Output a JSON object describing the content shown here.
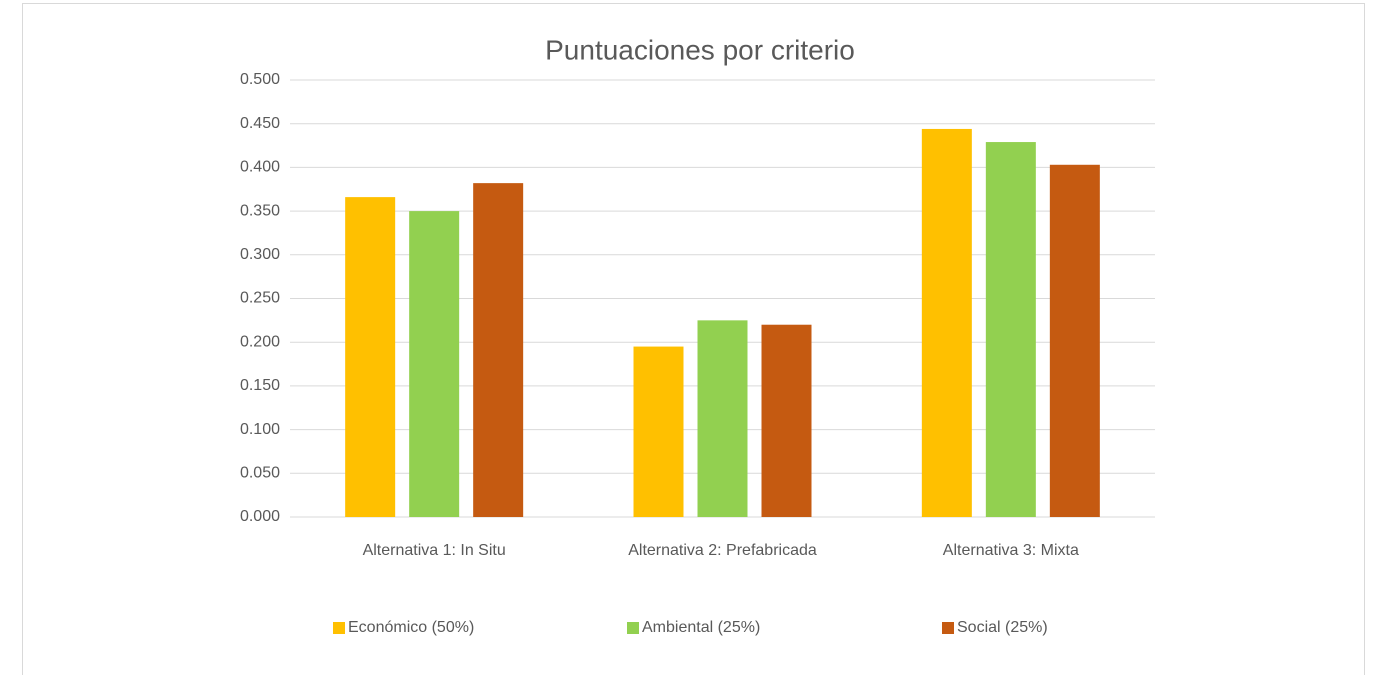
{
  "chart_data": {
    "type": "bar",
    "title": "Puntuaciones por criterio",
    "categories": [
      "Alternativa 1: In Situ",
      "Alternativa 2: Prefabricada",
      "Alternativa 3: Mixta"
    ],
    "series": [
      {
        "name": "Económico (50%)",
        "color": "#FFC000",
        "values": [
          0.366,
          0.195,
          0.444
        ]
      },
      {
        "name": "Ambiental (25%)",
        "color": "#92D050",
        "values": [
          0.35,
          0.225,
          0.429
        ]
      },
      {
        "name": "Social (25%)",
        "color": "#C55A11",
        "values": [
          0.382,
          0.22,
          0.403
        ]
      }
    ],
    "ylim": [
      0,
      0.5
    ],
    "yticks": [
      {
        "value": 0,
        "label": "0.000"
      },
      {
        "value": 0.05,
        "label": "0.050"
      },
      {
        "value": 0.1,
        "label": "0.100"
      },
      {
        "value": 0.15,
        "label": "0.150"
      },
      {
        "value": 0.2,
        "label": "0.200"
      },
      {
        "value": 0.25,
        "label": "0.250"
      },
      {
        "value": 0.3,
        "label": "0.300"
      },
      {
        "value": 0.35,
        "label": "0.350"
      },
      {
        "value": 0.4,
        "label": "0.400"
      },
      {
        "value": 0.45,
        "label": "0.450"
      },
      {
        "value": 0.5,
        "label": "0.500"
      }
    ],
    "grid": true,
    "legend": "bottom"
  }
}
